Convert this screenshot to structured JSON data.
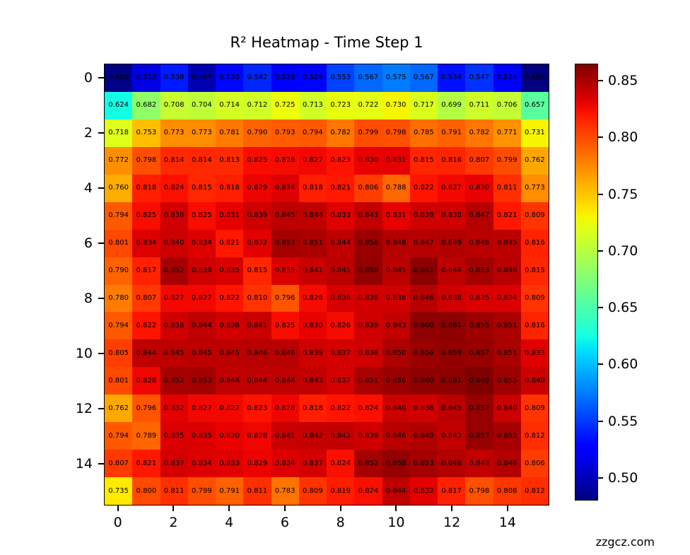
{
  "title": "R² Heatmap - Time Step 1",
  "watermark": "zzgcz.com",
  "chart_data": {
    "type": "heatmap",
    "title": "R² Heatmap - Time Step 1",
    "colormap": "jet",
    "vmin": 0.48,
    "vmax": 0.865,
    "grid": false,
    "annotation_format": "3-decimals",
    "x_ticks": [
      0,
      2,
      4,
      6,
      8,
      10,
      12,
      14
    ],
    "y_ticks": [
      0,
      2,
      4,
      6,
      8,
      10,
      12,
      14
    ],
    "x_range": [
      0,
      16
    ],
    "y_range": [
      0,
      16
    ],
    "colorbar_ticks": [
      0.85,
      0.8,
      0.75,
      0.7,
      0.65,
      0.6,
      0.55,
      0.5
    ],
    "values": [
      [
        0.482,
        0.513,
        0.538,
        0.497,
        0.53,
        0.542,
        0.528,
        0.529,
        0.553,
        0.567,
        0.575,
        0.567,
        0.534,
        0.547,
        0.524,
        0.48
      ],
      [
        0.624,
        0.682,
        0.708,
        0.704,
        0.714,
        0.712,
        0.725,
        0.713,
        0.723,
        0.722,
        0.73,
        0.717,
        0.699,
        0.711,
        0.706,
        0.657
      ],
      [
        0.718,
        0.753,
        0.773,
        0.773,
        0.781,
        0.79,
        0.793,
        0.794,
        0.782,
        0.799,
        0.798,
        0.785,
        0.791,
        0.782,
        0.771,
        0.731
      ],
      [
        0.772,
        0.798,
        0.814,
        0.814,
        0.813,
        0.825,
        0.826,
        0.827,
        0.823,
        0.83,
        0.831,
        0.815,
        0.816,
        0.807,
        0.799,
        0.762
      ],
      [
        0.76,
        0.818,
        0.824,
        0.815,
        0.818,
        0.829,
        0.834,
        0.818,
        0.821,
        0.806,
        0.788,
        0.822,
        0.827,
        0.83,
        0.811,
        0.773
      ],
      [
        0.794,
        0.825,
        0.838,
        0.825,
        0.831,
        0.839,
        0.845,
        0.844,
        0.833,
        0.843,
        0.831,
        0.839,
        0.838,
        0.847,
        0.821,
        0.809
      ],
      [
        0.801,
        0.834,
        0.84,
        0.834,
        0.821,
        0.832,
        0.853,
        0.851,
        0.844,
        0.856,
        0.848,
        0.847,
        0.849,
        0.846,
        0.845,
        0.816
      ],
      [
        0.79,
        0.817,
        0.852,
        0.839,
        0.835,
        0.815,
        0.835,
        0.841,
        0.845,
        0.859,
        0.845,
        0.861,
        0.844,
        0.853,
        0.846,
        0.815
      ],
      [
        0.78,
        0.807,
        0.827,
        0.827,
        0.822,
        0.81,
        0.796,
        0.826,
        0.836,
        0.838,
        0.838,
        0.846,
        0.838,
        0.835,
        0.834,
        0.809
      ],
      [
        0.794,
        0.822,
        0.838,
        0.844,
        0.838,
        0.841,
        0.825,
        0.83,
        0.826,
        0.839,
        0.843,
        0.86,
        0.861,
        0.855,
        0.851,
        0.816
      ],
      [
        0.805,
        0.844,
        0.845,
        0.845,
        0.845,
        0.846,
        0.846,
        0.839,
        0.837,
        0.838,
        0.85,
        0.856,
        0.859,
        0.857,
        0.851,
        0.833
      ],
      [
        0.801,
        0.828,
        0.852,
        0.853,
        0.844,
        0.844,
        0.844,
        0.843,
        0.837,
        0.851,
        0.856,
        0.86,
        0.861,
        0.865,
        0.855,
        0.84
      ],
      [
        0.762,
        0.796,
        0.832,
        0.827,
        0.827,
        0.823,
        0.828,
        0.818,
        0.822,
        0.824,
        0.84,
        0.838,
        0.845,
        0.857,
        0.84,
        0.809
      ],
      [
        0.794,
        0.789,
        0.835,
        0.835,
        0.83,
        0.828,
        0.841,
        0.842,
        0.843,
        0.838,
        0.846,
        0.849,
        0.843,
        0.857,
        0.852,
        0.812
      ],
      [
        0.807,
        0.821,
        0.837,
        0.834,
        0.833,
        0.829,
        0.834,
        0.837,
        0.824,
        0.852,
        0.858,
        0.853,
        0.848,
        0.843,
        0.848,
        0.806
      ],
      [
        0.735,
        0.8,
        0.811,
        0.799,
        0.791,
        0.811,
        0.783,
        0.809,
        0.819,
        0.824,
        0.844,
        0.832,
        0.817,
        0.798,
        0.808,
        0.812
      ]
    ]
  }
}
